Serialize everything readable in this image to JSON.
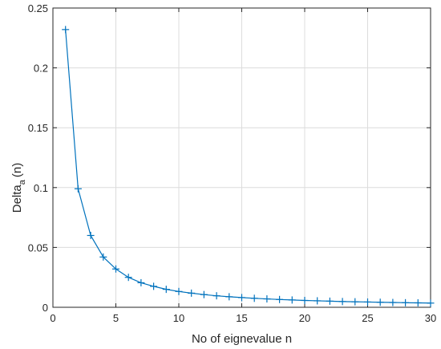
{
  "chart_data": {
    "type": "line",
    "title": "",
    "xlabel": "No of eignevalue n",
    "ylabel_main": "Delta",
    "ylabel_subscript": "a",
    "ylabel_suffix": "(n)",
    "xlim": [
      0,
      30
    ],
    "ylim": [
      0,
      0.25
    ],
    "xticks": [
      0,
      5,
      10,
      15,
      20,
      25,
      30
    ],
    "yticks": [
      0,
      0.05,
      0.1,
      0.15,
      0.2,
      0.25
    ],
    "xtick_labels": [
      "0",
      "5",
      "10",
      "15",
      "20",
      "25",
      "30"
    ],
    "ytick_labels": [
      "0",
      "0.05",
      "0.1",
      "0.15",
      "0.2",
      "0.25"
    ],
    "grid": true,
    "marker": "plus",
    "color": "#0072bd",
    "series": [
      {
        "x": [
          1,
          2,
          3,
          4,
          5,
          6,
          7,
          8,
          9,
          10,
          11,
          12,
          13,
          14,
          15,
          16,
          17,
          18,
          19,
          20,
          21,
          22,
          23,
          24,
          25,
          26,
          27,
          28,
          29,
          30
        ],
        "values": [
          0.232,
          0.099,
          0.06,
          0.042,
          0.032,
          0.025,
          0.0205,
          0.0175,
          0.015,
          0.0132,
          0.0118,
          0.0106,
          0.0096,
          0.0088,
          0.0081,
          0.0075,
          0.007,
          0.0065,
          0.0061,
          0.0057,
          0.0054,
          0.0051,
          0.0048,
          0.0046,
          0.0044,
          0.0042,
          0.004,
          0.0038,
          0.0037,
          0.0035
        ]
      }
    ]
  }
}
